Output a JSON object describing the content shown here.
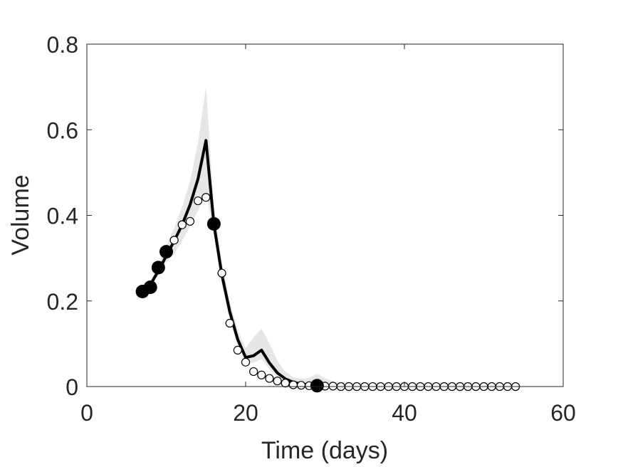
{
  "chart_data": {
    "type": "line",
    "xlabel": "Time (days)",
    "ylabel": "Volume",
    "xlim": [
      0,
      60
    ],
    "ylim": [
      0,
      0.8
    ],
    "xticks": [
      0,
      20,
      40,
      60
    ],
    "xtick_labels": [
      "0",
      "20",
      "40",
      "60"
    ],
    "yticks": [
      0,
      0.2,
      0.4,
      0.6,
      0.8
    ],
    "ytick_labels": [
      "0",
      "0.2",
      "0.4",
      "0.6",
      "0.8"
    ],
    "grid": false,
    "box": true,
    "colors": {
      "line": "#000000",
      "band": "#e6e6e6",
      "axis": "#262626"
    },
    "series": [
      {
        "style": "band",
        "x": [
          7,
          8,
          9,
          10,
          11,
          12,
          13,
          14,
          15,
          16,
          17,
          18,
          19,
          20,
          21,
          22,
          23,
          24,
          25,
          26,
          27,
          28,
          29,
          30,
          31,
          32
        ],
        "lower": [
          0.215,
          0.232,
          0.26,
          0.29,
          0.31,
          0.34,
          0.375,
          0.41,
          0.455,
          0.35,
          0.24,
          0.155,
          0.095,
          0.055,
          0.055,
          0.065,
          0.04,
          0.022,
          0.012,
          0.006,
          0.003,
          0.002,
          0.002,
          0.001,
          0.0,
          0.0
        ],
        "upper": [
          0.23,
          0.245,
          0.285,
          0.33,
          0.37,
          0.42,
          0.48,
          0.57,
          0.7,
          0.42,
          0.29,
          0.2,
          0.13,
          0.09,
          0.115,
          0.135,
          0.1,
          0.06,
          0.035,
          0.022,
          0.018,
          0.02,
          0.03,
          0.02,
          0.012,
          0.006
        ]
      },
      {
        "style": "line",
        "x": [
          7,
          8,
          9,
          10,
          11,
          12,
          13,
          14,
          15,
          16,
          17,
          18,
          19,
          20,
          21,
          22,
          23,
          24,
          25,
          26,
          27,
          28,
          29,
          30,
          31,
          32,
          34,
          36
        ],
        "y": [
          0.222,
          0.238,
          0.27,
          0.305,
          0.34,
          0.378,
          0.425,
          0.485,
          0.575,
          0.38,
          0.262,
          0.175,
          0.11,
          0.068,
          0.072,
          0.085,
          0.055,
          0.032,
          0.018,
          0.01,
          0.006,
          0.004,
          0.003,
          0.002,
          0.001,
          0.0,
          0.0,
          0.0
        ]
      },
      {
        "style": "filled_markers",
        "x": [
          7,
          8,
          9,
          10,
          16,
          29
        ],
        "y": [
          0.222,
          0.232,
          0.278,
          0.315,
          0.38,
          0.002
        ]
      },
      {
        "style": "open_markers",
        "x": [
          11,
          12,
          13,
          14,
          15,
          17,
          18,
          19,
          20,
          21,
          22,
          23,
          24,
          25,
          26,
          27,
          28,
          29,
          30,
          31,
          32,
          33,
          34,
          35,
          36,
          37,
          38,
          39,
          40,
          41,
          42,
          43,
          44,
          45,
          46,
          47,
          48,
          49,
          50,
          51,
          52,
          53,
          54
        ],
        "y": [
          0.342,
          0.378,
          0.386,
          0.434,
          0.442,
          0.265,
          0.148,
          0.085,
          0.057,
          0.035,
          0.027,
          0.019,
          0.013,
          0.008,
          0.004,
          0.003,
          0.002,
          0.001,
          0.001,
          0.001,
          0.0,
          0.0,
          0.0,
          0.0,
          0.0,
          0.0,
          0.0,
          0.0,
          0.0,
          0.0,
          0.0,
          0.0,
          0.0,
          0.0,
          0.0,
          0.0,
          0.0,
          0.0,
          0.0,
          0.0,
          0.0,
          0.0,
          0.0
        ]
      }
    ]
  }
}
